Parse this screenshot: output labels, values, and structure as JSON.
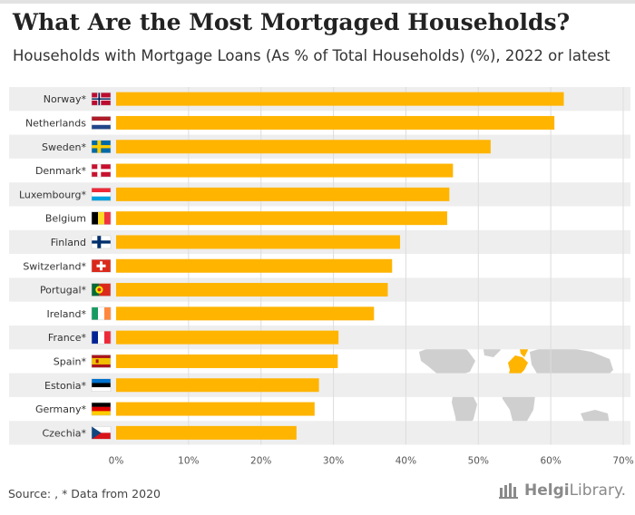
{
  "header": {
    "title": "What Are the Most Mortgaged Households?",
    "subtitle": "Households with Mortgage Loans (As % of Total Households) (%), 2022 or latest"
  },
  "footer": {
    "source": "Source:   , * Data from 2020",
    "logo_primary": "Helgi",
    "logo_secondary": "Library."
  },
  "colors": {
    "bar": "#FFB400",
    "stripe": "#eeeeee",
    "grid": "#dddddd",
    "map_land": "#cfcfcf",
    "map_highlight": "#FFB400"
  },
  "chart_data": {
    "type": "bar",
    "orientation": "horizontal",
    "title": "What Are the Most Mortgaged Households?",
    "subtitle": "Households with Mortgage Loans (As % of Total Households) (%), 2022 or latest",
    "xlabel": "",
    "ylabel": "",
    "xlim": [
      0,
      70
    ],
    "xticks": [
      0,
      10,
      20,
      30,
      40,
      50,
      60,
      70
    ],
    "xtick_labels": [
      "0%",
      "10%",
      "20%",
      "30%",
      "40%",
      "50%",
      "60%",
      "70%"
    ],
    "categories": [
      "Norway*",
      "Netherlands",
      "Sweden*",
      "Denmark*",
      "Luxembourg*",
      "Belgium",
      "Finland",
      "Switzerland*",
      "Portugal*",
      "Ireland*",
      "France*",
      "Spain*",
      "Estonia*",
      "Germany*",
      "Czechia*"
    ],
    "flags": [
      "norway",
      "netherlands",
      "sweden",
      "denmark",
      "luxembourg",
      "belgium",
      "finland",
      "switzerland",
      "portugal",
      "ireland",
      "france",
      "spain",
      "estonia",
      "germany",
      "czechia"
    ],
    "values": [
      61.8,
      60.5,
      51.7,
      46.5,
      46.0,
      45.7,
      39.2,
      38.1,
      37.5,
      35.6,
      30.7,
      30.6,
      28.0,
      27.4,
      24.9
    ]
  }
}
